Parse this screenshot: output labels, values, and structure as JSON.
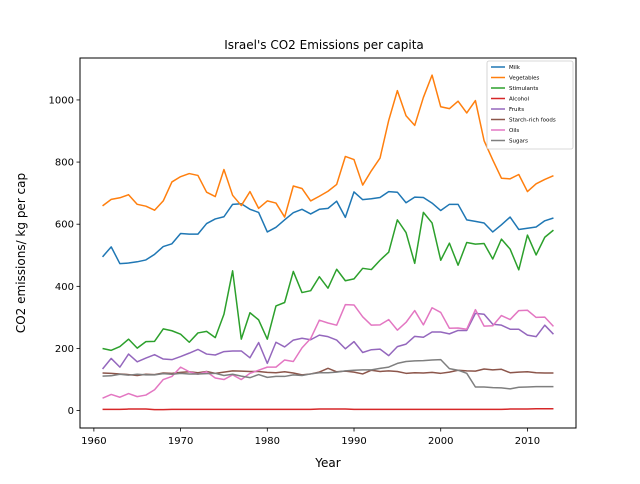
{
  "chart_data": {
    "type": "line",
    "title": "Israel's CO2 Emissions per capita",
    "xlabel": "Year",
    "ylabel": "CO2 emissions/ kg per cap",
    "xlim": [
      1958.4,
      2015.6
    ],
    "ylim": [
      -56,
      1135
    ],
    "xticks": [
      1960,
      1970,
      1980,
      1990,
      2000,
      2010
    ],
    "yticks": [
      0,
      200,
      400,
      600,
      800,
      1000
    ],
    "legend_position": "top-right",
    "grid": false,
    "x": [
      1961,
      1962,
      1963,
      1964,
      1965,
      1966,
      1967,
      1968,
      1969,
      1970,
      1971,
      1972,
      1973,
      1974,
      1975,
      1976,
      1977,
      1978,
      1979,
      1980,
      1981,
      1982,
      1983,
      1984,
      1985,
      1986,
      1987,
      1988,
      1989,
      1990,
      1991,
      1992,
      1993,
      1994,
      1995,
      1996,
      1997,
      1998,
      1999,
      2000,
      2001,
      2002,
      2003,
      2004,
      2005,
      2006,
      2007,
      2008,
      2009,
      2010,
      2011,
      2012,
      2013
    ],
    "series": [
      {
        "name": "Milk",
        "color": "#1f77b4",
        "values": [
          495,
          527,
          473,
          475,
          479,
          485,
          503,
          528,
          537,
          570,
          568,
          568,
          602,
          617,
          624,
          664,
          666,
          648,
          638,
          575,
          590,
          614,
          637,
          648,
          633,
          648,
          651,
          674,
          622,
          704,
          679,
          682,
          686,
          705,
          703,
          669,
          687,
          686,
          668,
          644,
          664,
          664,
          614,
          609,
          604,
          575,
          598,
          623,
          583,
          587,
          591,
          611,
          620
        ]
      },
      {
        "name": "Vegetables",
        "color": "#ff7f0e",
        "values": [
          659,
          680,
          685,
          695,
          664,
          658,
          645,
          675,
          736,
          753,
          763,
          757,
          703,
          689,
          776,
          693,
          660,
          705,
          651,
          675,
          668,
          623,
          723,
          715,
          675,
          690,
          706,
          728,
          818,
          808,
          726,
          772,
          813,
          934,
          1030,
          949,
          918,
          1008,
          1080,
          978,
          972,
          996,
          958,
          998,
          869,
          807,
          748,
          746,
          760,
          705,
          730,
          744,
          756
        ]
      },
      {
        "name": "Stimulants",
        "color": "#2ca02c",
        "values": [
          200,
          194,
          206,
          230,
          201,
          222,
          223,
          263,
          257,
          246,
          220,
          250,
          255,
          235,
          310,
          450,
          230,
          315,
          292,
          230,
          337,
          348,
          448,
          380,
          386,
          431,
          394,
          455,
          418,
          424,
          458,
          454,
          484,
          510,
          614,
          573,
          474,
          638,
          604,
          484,
          539,
          468,
          541,
          536,
          538,
          488,
          552,
          520,
          453,
          565,
          501,
          558,
          581
        ]
      },
      {
        "name": "Alcohol",
        "color": "#d62728",
        "values": [
          4,
          4,
          4,
          5,
          5,
          5,
          3,
          3,
          4,
          4,
          4,
          4,
          4,
          4,
          4,
          4,
          4,
          4,
          4,
          4,
          4,
          4,
          4,
          4,
          4,
          5,
          5,
          5,
          5,
          4,
          4,
          4,
          4,
          4,
          4,
          4,
          4,
          4,
          4,
          4,
          4,
          4,
          4,
          4,
          4,
          4,
          4,
          5,
          5,
          5,
          6,
          6,
          6
        ]
      },
      {
        "name": "Fruits",
        "color": "#9467bd",
        "values": [
          134,
          168,
          140,
          182,
          157,
          169,
          180,
          166,
          164,
          174,
          185,
          197,
          182,
          179,
          190,
          192,
          192,
          170,
          219,
          152,
          220,
          205,
          227,
          233,
          228,
          243,
          238,
          227,
          199,
          222,
          187,
          196,
          198,
          177,
          206,
          214,
          239,
          236,
          253,
          253,
          247,
          258,
          258,
          313,
          310,
          278,
          275,
          262,
          262,
          243,
          238,
          275,
          246
        ]
      },
      {
        "name": "Starch-rich foods",
        "color": "#8c564b",
        "values": [
          121,
          120,
          118,
          116,
          113,
          117,
          116,
          121,
          120,
          123,
          125,
          122,
          126,
          120,
          124,
          128,
          127,
          126,
          126,
          123,
          122,
          125,
          121,
          115,
          118,
          124,
          136,
          125,
          127,
          124,
          118,
          130,
          126,
          128,
          126,
          120,
          122,
          121,
          123,
          120,
          124,
          130,
          128,
          127,
          134,
          131,
          133,
          122,
          124,
          125,
          122,
          121,
          121
        ]
      },
      {
        "name": "Oils",
        "color": "#e377c2",
        "values": [
          40,
          52,
          43,
          55,
          45,
          50,
          67,
          100,
          110,
          140,
          125,
          117,
          125,
          105,
          100,
          115,
          100,
          120,
          130,
          140,
          140,
          163,
          158,
          202,
          232,
          291,
          282,
          275,
          341,
          340,
          302,
          275,
          276,
          293,
          259,
          284,
          322,
          276,
          331,
          316,
          265,
          266,
          262,
          325,
          272,
          273,
          306,
          293,
          322,
          323,
          300,
          301,
          271
        ]
      },
      {
        "name": "Sugars",
        "color": "#7f7f7f",
        "values": [
          111,
          112,
          117,
          114,
          117,
          115,
          115,
          119,
          117,
          120,
          118,
          118,
          119,
          120,
          113,
          117,
          111,
          106,
          116,
          107,
          110,
          110,
          115,
          113,
          118,
          122,
          122,
          124,
          128,
          130,
          131,
          131,
          136,
          140,
          152,
          158,
          160,
          161,
          163,
          164,
          135,
          130,
          120,
          76,
          76,
          74,
          73,
          70,
          75,
          76,
          77,
          77,
          77
        ]
      }
    ]
  }
}
